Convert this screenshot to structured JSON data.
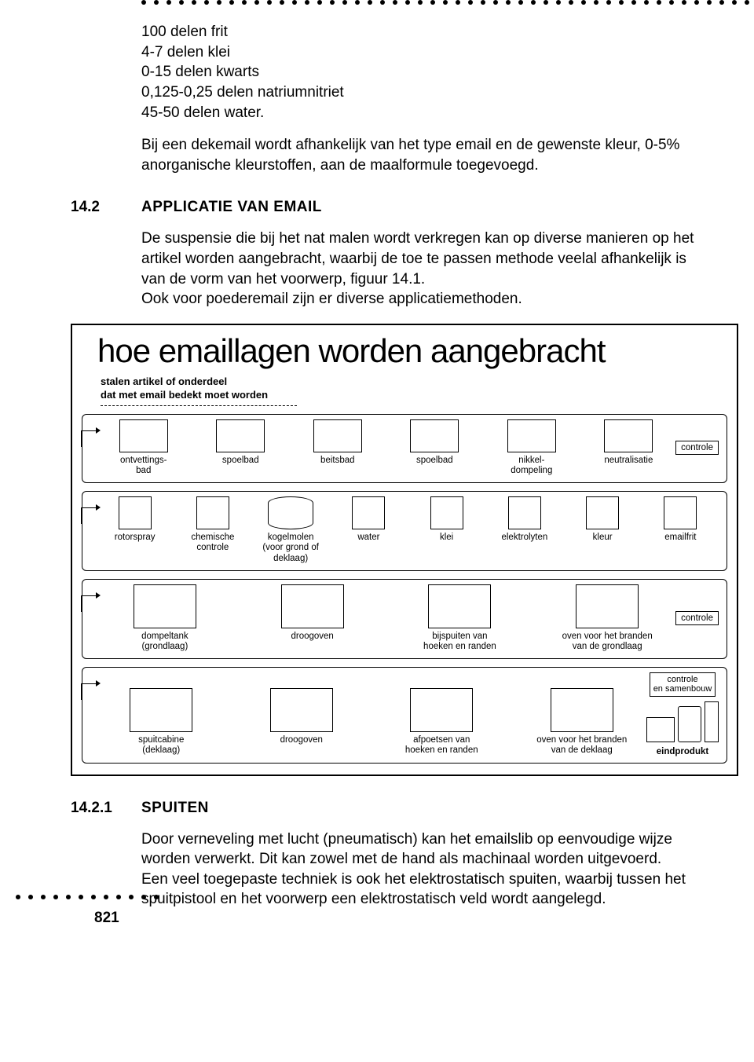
{
  "top_dots_count": 50,
  "bottom_dots_count": 12,
  "page_number": "821",
  "recipe": [
    "100 delen frit",
    "4-7 delen klei",
    "0-15 delen kwarts",
    "0,125-0,25 delen natriumnitriet",
    "45-50 delen water."
  ],
  "para_dekemail": "Bij een dekemail wordt afhankelijk van het type email en de gewenste kleur, 0-5% anorganische kleurstoffen, aan de maalformule toegevoegd.",
  "sec142_num": "14.2",
  "sec142_title": "APPLICATIE VAN EMAIL",
  "para_applicatie": "De suspensie die bij het nat malen wordt verkregen kan op diverse manieren op het artikel worden aangebracht, waarbij de toe te passen methode veelal afhankelijk is van de vorm van het voorwerp, figuur 14.1.\nOok voor poederemail zijn er diverse applicatiemethoden.",
  "figure": {
    "title": "hoe emaillagen worden aangebracht",
    "subcaption": "stalen artikel of onderdeel\ndat met email bedekt moet worden",
    "row1_labels": [
      "ontvettings-\nbad",
      "spoelbad",
      "beitsbad",
      "spoelbad",
      "nikkel-\ndompeling",
      "neutralisatie"
    ],
    "row1_end": "controle",
    "row2_labels": [
      "rotorspray",
      "chemische\ncontrole",
      "kogelmolen\n(voor grond of deklaag)",
      "water",
      "klei",
      "elektrolyten",
      "kleur",
      "emailfrit"
    ],
    "row3_labels": [
      "dompeltank\n(grondlaag)",
      "droogoven",
      "bijspuiten van\nhoeken en randen",
      "oven voor het branden\nvan de grondlaag"
    ],
    "row3_end": "controle",
    "row4_labels": [
      "spuitcabine\n(deklaag)",
      "droogoven",
      "afpoetsen van\nhoeken en randen",
      "oven voor het branden\nvan de deklaag"
    ],
    "row4_ctrl": "controle\nen samenbouw",
    "row4_end": "eindprodukt"
  },
  "sec1421_num": "14.2.1",
  "sec1421_title": "SPUITEN",
  "para_spuiten": "Door verneveling met lucht (pneumatisch) kan het emailslib op eenvoudige wijze worden verwerkt. Dit kan zowel met de hand als machinaal worden uitgevoerd.\nEen veel toegepaste techniek is ook het elektrostatisch spuiten, waarbij tussen het spuitpistool en het voorwerp een elektrostatisch veld wordt aangelegd."
}
